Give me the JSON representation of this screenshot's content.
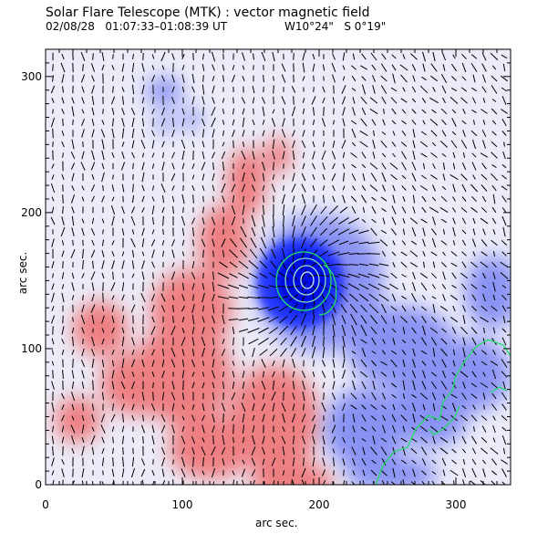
{
  "title": "Solar Flare Telescope (MTK) : vector magnetic field",
  "subtitle_time": "02/08/28   01:07:33–01:08:39 UT",
  "subtitle_coords": "W10°24\"   S 0°19\"",
  "x_axis": {
    "label": "arc sec.",
    "range": [
      0,
      340
    ],
    "ticks": [
      0,
      100,
      200,
      300
    ]
  },
  "y_axis": {
    "label": "arc sec.",
    "range": [
      0,
      320
    ],
    "ticks": [
      0,
      100,
      200,
      300
    ]
  },
  "colors": {
    "positive": "#e83c3c",
    "negative": "#1f3cff",
    "contour": "#22dd66",
    "background": "#ffffff"
  }
}
